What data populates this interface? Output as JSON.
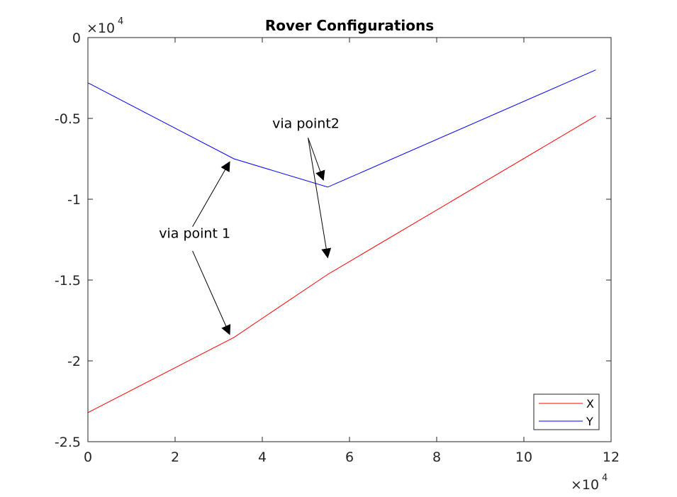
{
  "chart_data": {
    "type": "line",
    "title": "Rover Configurations",
    "xlabel": "",
    "ylabel": "",
    "x_exponent_label": "×10",
    "x_exponent_power": "4",
    "y_exponent_label": "×10",
    "y_exponent_power": "4",
    "xlim": [
      0,
      120000
    ],
    "ylim": [
      -25000,
      0
    ],
    "x_ticks": [
      0,
      20000,
      40000,
      60000,
      80000,
      100000,
      120000
    ],
    "x_tick_labels": [
      "0",
      "2",
      "4",
      "6",
      "8",
      "10",
      "12"
    ],
    "y_ticks": [
      0,
      -5000,
      -10000,
      -15000,
      -20000,
      -25000
    ],
    "y_tick_labels": [
      "0",
      "-0.5",
      "-1",
      "-1.5",
      "-2",
      "-2.5"
    ],
    "grid": false,
    "legend_position": "bottom-right",
    "series": [
      {
        "name": "X",
        "color": "#ff0000",
        "x": [
          0,
          33500,
          55000,
          116500
        ],
        "y": [
          -23200,
          -18550,
          -14650,
          -4850
        ]
      },
      {
        "name": "Y",
        "color": "#0000ff",
        "x": [
          0,
          33500,
          55000,
          116500
        ],
        "y": [
          -2800,
          -7500,
          -9250,
          -2000
        ]
      }
    ],
    "annotations": [
      {
        "text": "via point 1",
        "text_x": 24500,
        "text_y": -12400,
        "arrows": [
          {
            "from": [
              24000,
              -11700
            ],
            "to": [
              32500,
              -7700
            ]
          },
          {
            "from": [
              24000,
              -13200
            ],
            "to": [
              32500,
              -18350
            ]
          }
        ]
      },
      {
        "text": "via point2",
        "text_x": 50000,
        "text_y": -5600,
        "arrows": [
          {
            "from": [
              50500,
              -6200
            ],
            "to": [
              54000,
              -8800
            ]
          },
          {
            "from": [
              50500,
              -6200
            ],
            "to": [
              55000,
              -13600
            ]
          }
        ]
      }
    ]
  }
}
